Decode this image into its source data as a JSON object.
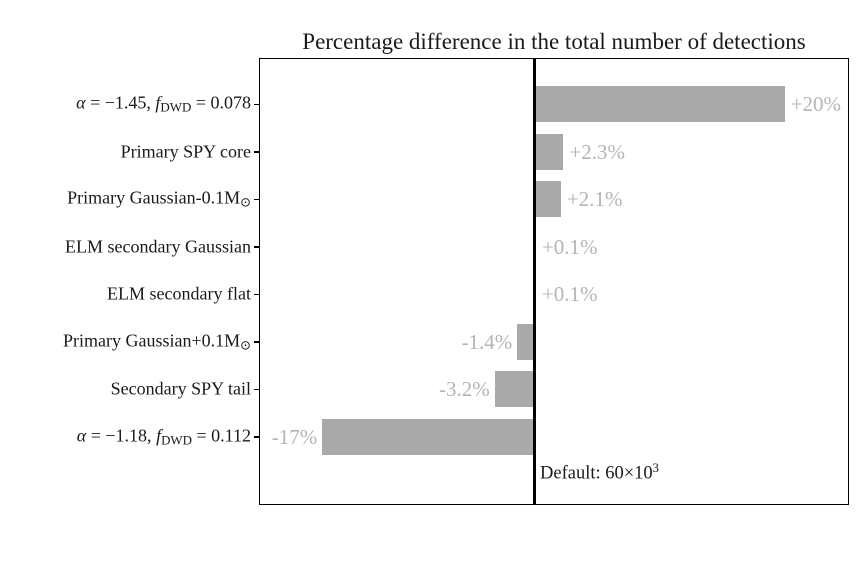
{
  "chart_data": {
    "type": "bar",
    "orientation": "horizontal",
    "title": "Percentage difference in the total number of detections",
    "unit": "%",
    "xlim": [
      -22.2,
      25.4
    ],
    "grid": false,
    "zero_line": true,
    "legend": "none",
    "bar_color": "#a9a9a9",
    "value_label_color": "#b4b4b4",
    "axis_color": "#000000",
    "categories": [
      "α = −1.45, f_DWD = 0.078",
      "Primary SPY core",
      "Primary Gaussian-0.1M⊙",
      "ELM secondary Gaussian",
      "ELM secondary flat",
      "Primary Gaussian+0.1M⊙",
      "Secondary SPY tail",
      "α = −1.18, f_DWD = 0.112"
    ],
    "values": [
      20,
      2.3,
      2.1,
      0.1,
      0.1,
      -1.4,
      -3.2,
      -17
    ],
    "value_labels": [
      "+20%",
      "+2.3%",
      "+2.1%",
      "+0.1%",
      "+0.1%",
      "-1.4%",
      "-3.2%",
      "-17%"
    ],
    "label_rich": [
      [
        {
          "t": "α",
          "it": true
        },
        {
          "t": " = −1.45, "
        },
        {
          "t": "f",
          "it": true
        },
        {
          "t": "DWD",
          "sub": true
        },
        {
          "t": " = 0.078"
        }
      ],
      [
        {
          "t": "Primary SPY core"
        }
      ],
      [
        {
          "t": "Primary Gaussian-0.1M"
        },
        {
          "t": "⊙",
          "sun": true
        }
      ],
      [
        {
          "t": "ELM secondary Gaussian"
        }
      ],
      [
        {
          "t": "ELM secondary flat"
        }
      ],
      [
        {
          "t": "Primary Gaussian+0.1M"
        },
        {
          "t": "⊙",
          "sun": true
        }
      ],
      [
        {
          "t": "Secondary SPY tail"
        }
      ],
      [
        {
          "t": "α",
          "it": true
        },
        {
          "t": " = −1.18, "
        },
        {
          "t": "f",
          "it": true
        },
        {
          "t": "DWD",
          "sub": true
        },
        {
          "t": " = 0.112"
        }
      ]
    ],
    "annotation": {
      "text": "Default: 60×10³",
      "segments": [
        {
          "t": "Default: 60×10"
        },
        {
          "t": "3",
          "sup": true
        }
      ]
    }
  }
}
